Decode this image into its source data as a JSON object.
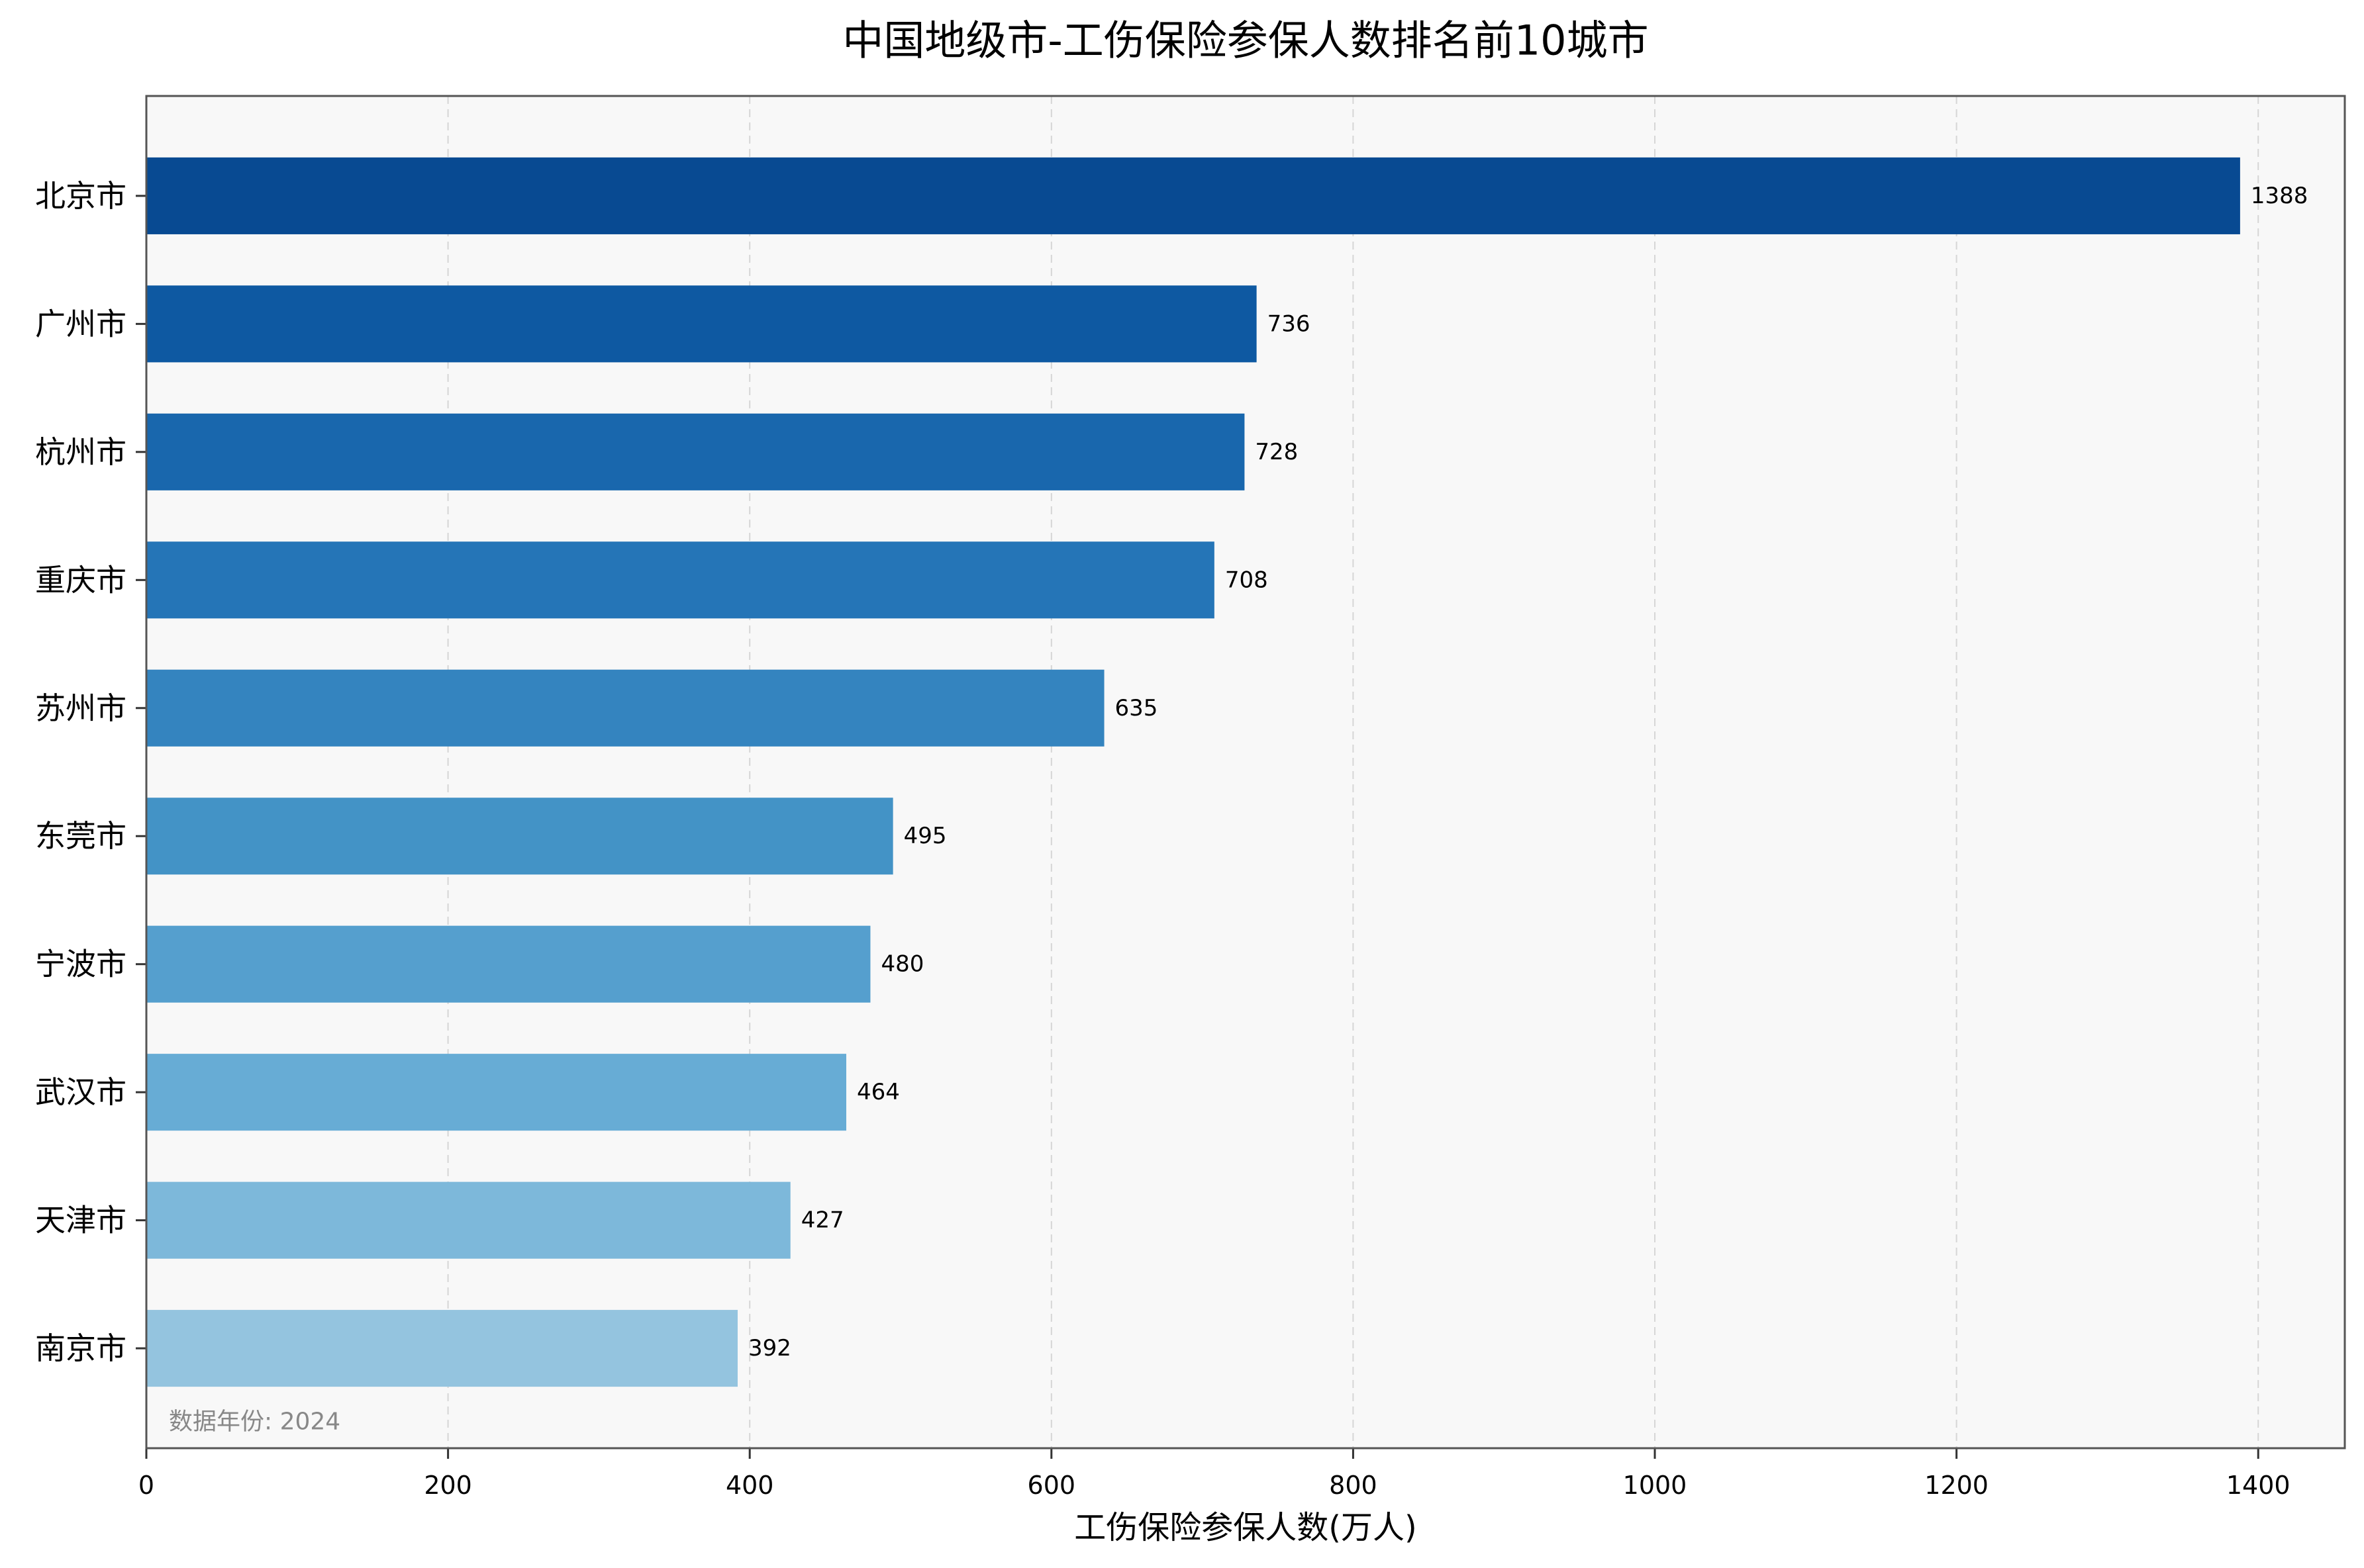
{
  "chart_data": {
    "type": "bar",
    "orientation": "horizontal",
    "title": "中国地级市-工伤保险参保人数排名前10城市",
    "xlabel": "工伤保险参保人数(万人)",
    "categories": [
      "北京市",
      "广州市",
      "杭州市",
      "重庆市",
      "苏州市",
      "东莞市",
      "宁波市",
      "武汉市",
      "天津市",
      "南京市"
    ],
    "values": [
      1388,
      736,
      728,
      708,
      635,
      495,
      480,
      464,
      427,
      392
    ],
    "colors": [
      "#084a92",
      "#0e59a2",
      "#1967ad",
      "#2575b7",
      "#3484bf",
      "#4393c6",
      "#559fce",
      "#67acd5",
      "#7db8da",
      "#94c4df"
    ],
    "xlim": [
      0,
      1457.4
    ],
    "xticks": [
      0,
      200,
      400,
      600,
      800,
      1000,
      1200,
      1400
    ],
    "grid": true,
    "legend": "none",
    "annotation": "数据年份: 2024"
  }
}
